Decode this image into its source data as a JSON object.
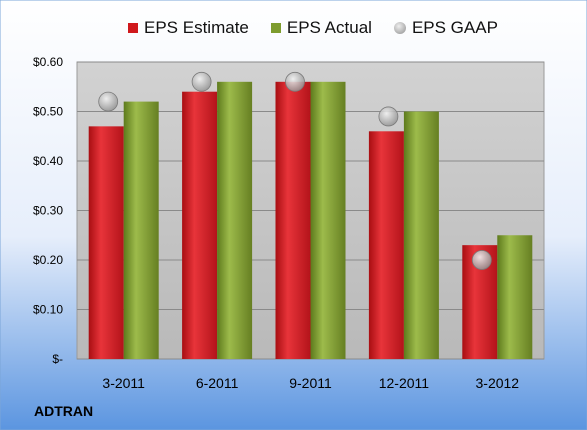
{
  "chart_data": {
    "type": "bar",
    "categories": [
      "3-2011",
      "6-2011",
      "9-2011",
      "12-2011",
      "3-2012"
    ],
    "series": [
      {
        "name": "EPS Estimate",
        "values": [
          0.47,
          0.54,
          0.56,
          0.46,
          0.23
        ],
        "color": "#d0181c",
        "mark": "bar"
      },
      {
        "name": "EPS Actual",
        "values": [
          0.52,
          0.56,
          0.56,
          0.5,
          0.25
        ],
        "color": "#7e9c2e",
        "mark": "bar"
      },
      {
        "name": "EPS GAAP",
        "values": [
          0.52,
          0.56,
          0.56,
          0.49,
          0.2
        ],
        "color": "#a6a6a6",
        "mark": "circle"
      }
    ],
    "yticks": [
      "$-",
      "$0.10",
      "$0.20",
      "$0.30",
      "$0.40",
      "$0.50",
      "$0.60"
    ],
    "ylim": [
      0,
      0.6
    ],
    "grid": true,
    "legend": "top"
  },
  "footer": {
    "company": "ADTRAN"
  },
  "colors": {
    "background_top": "#ffffff",
    "background_bottom": "#5b95e0",
    "plot_area": "#c8c8c8"
  }
}
